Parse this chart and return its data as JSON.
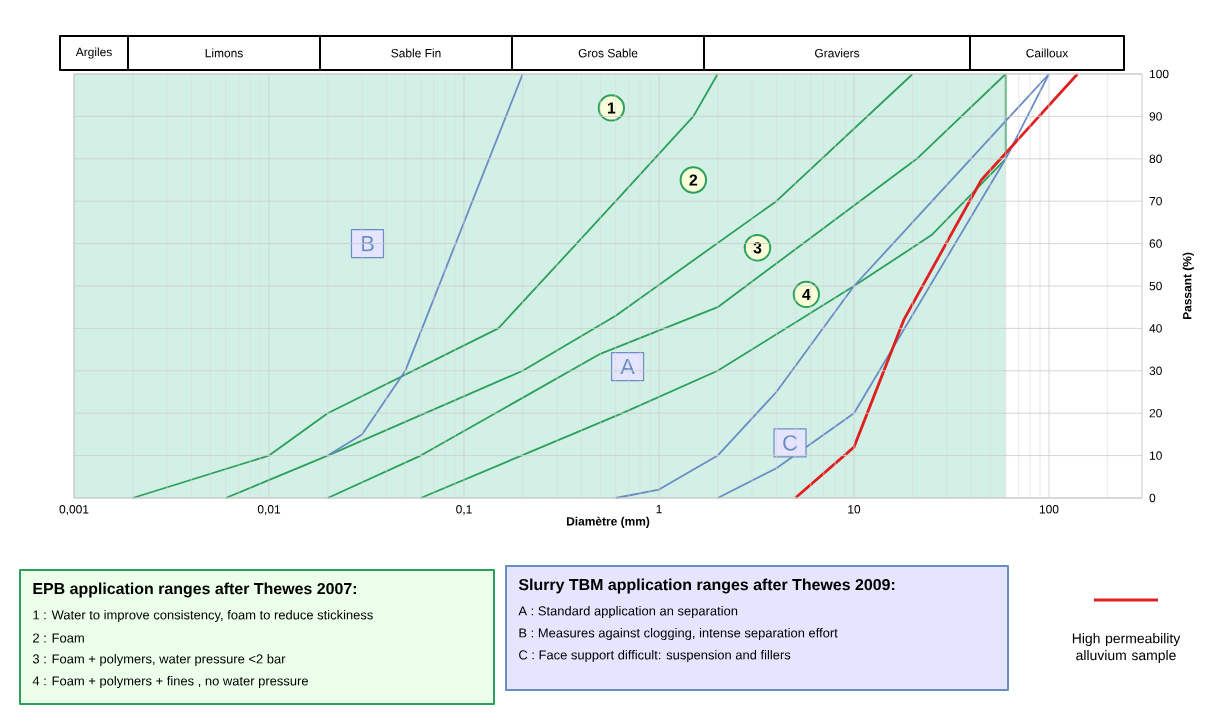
{
  "chart_data": {
    "type": "line",
    "xlabel": "Diamètre (mm)",
    "ylabel": "Passant (%)",
    "log": "x",
    "grid": true,
    "legend": "bottom right",
    "xlim": [
      0.001,
      300
    ],
    "ylim": [
      0,
      100
    ],
    "xticks": [
      {
        "value": 0.001,
        "label": "0,001"
      },
      {
        "value": 0.01,
        "label": "0,01"
      },
      {
        "value": 0.1,
        "label": "0,1"
      },
      1,
      10,
      100
    ],
    "yticks": [
      0,
      10,
      20,
      30,
      40,
      50,
      60,
      70,
      80,
      90,
      100
    ],
    "series": [
      {
        "color": "#2aa05a",
        "x": [
          0.002,
          0.01,
          0.02,
          0.15,
          0.6,
          1.5,
          2
        ],
        "values": [
          0,
          10,
          20,
          40,
          70,
          90,
          100
        ]
      },
      {
        "color": "#2aa05a",
        "x": [
          0.006,
          0.02,
          0.2,
          0.6,
          4,
          20
        ],
        "values": [
          0,
          10,
          30,
          43,
          70,
          100
        ]
      },
      {
        "color": "#2aa05a",
        "x": [
          0.02,
          0.06,
          0.5,
          2,
          21,
          60
        ],
        "values": [
          0,
          10,
          34,
          45,
          80,
          100
        ]
      },
      {
        "color": "#2aa05a",
        "x": [
          0.06,
          0.65,
          2,
          10,
          25,
          60,
          60
        ],
        "values": [
          0,
          20,
          30,
          50,
          62,
          80,
          100
        ]
      },
      {
        "color": "#6a8cc4",
        "x": [
          0.02,
          0.03,
          0.05,
          0.2
        ],
        "values": [
          10,
          15,
          30,
          100
        ]
      },
      {
        "color": "#6a8cc4",
        "x": [
          0.6,
          1,
          2,
          4,
          10,
          100
        ],
        "values": [
          0,
          2,
          10,
          25,
          50,
          100
        ]
      },
      {
        "color": "#6a8cc4",
        "x": [
          2,
          4,
          10,
          60,
          100
        ],
        "values": [
          0,
          7,
          20,
          80,
          100
        ]
      },
      {
        "name": "High permeability alluvium sample",
        "color": "#e02020",
        "x": [
          5,
          10,
          18,
          45,
          140
        ],
        "values": [
          0,
          12,
          42,
          75,
          100
        ]
      }
    ],
    "bands": [
      {
        "axis": "x",
        "from": 0.001,
        "to": 60,
        "color": "#d3f0e6"
      }
    ],
    "annotations": [
      "Argiles",
      "Limons",
      "Sable Fin",
      "Gros Sable",
      "Graviers",
      "Cailloux",
      {
        "text": "1",
        "x": 0.57,
        "y": 92
      },
      {
        "text": "2",
        "x": 1.5,
        "y": 75
      },
      {
        "text": "3",
        "x": 3.2,
        "y": 59
      },
      {
        "text": "4",
        "x": 5.7,
        "y": 48
      },
      {
        "text": "A",
        "x": 0.69,
        "y": 31
      },
      {
        "text": "B",
        "x": 0.032,
        "y": 60
      },
      {
        "text": "C",
        "x": 4.7,
        "y": 13
      },
      "EPB application ranges after Thewes 2007:",
      "1 : Water to improve consistency, foam to reduce stickiness",
      "2 : Foam",
      "3 : Foam + polymers, water pressure <2 bar",
      "4 : Foam + polymers + fines , no water pressure",
      "Slurry TBM application ranges after Thewes 2009:",
      "A : Standard application an separation",
      "B : Measures against clogging, intense separation effort",
      "C : Face support difficult: suspension and fillers"
    ]
  }
}
